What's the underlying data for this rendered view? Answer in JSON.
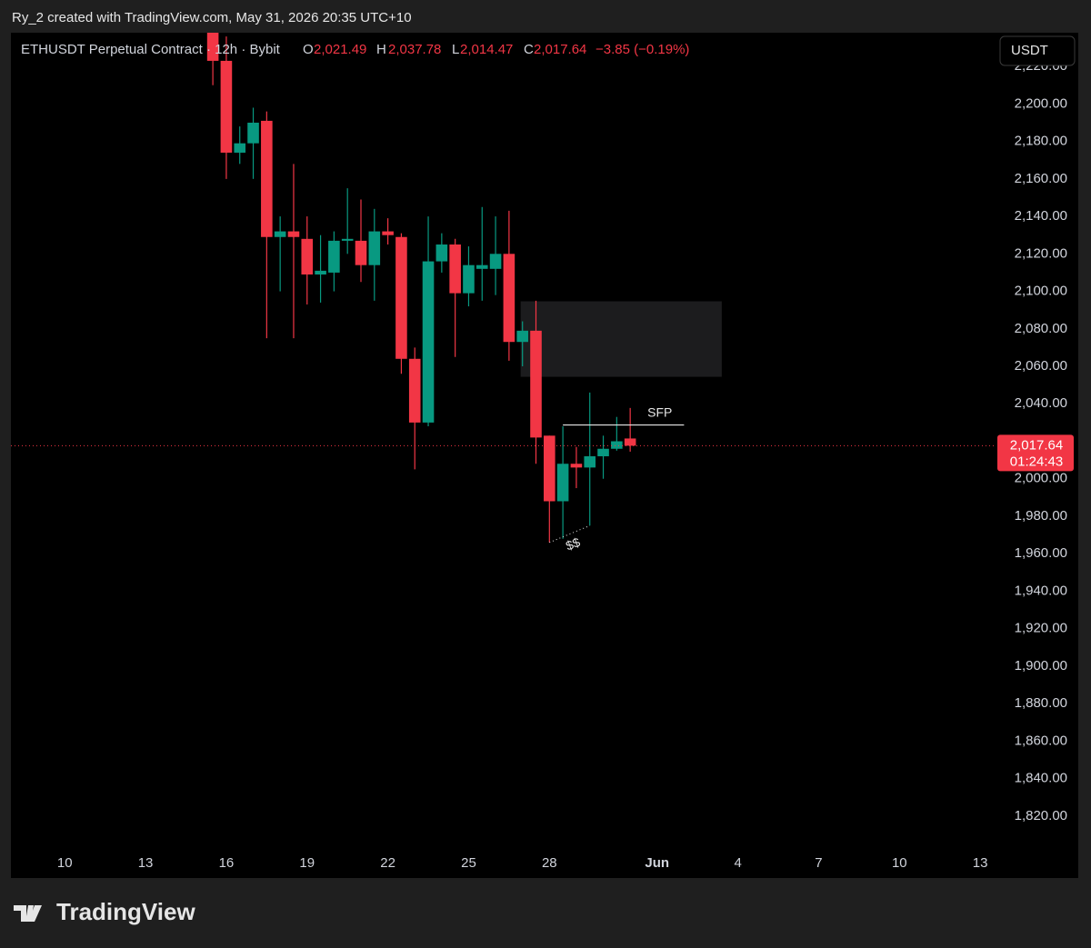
{
  "header": {
    "title": "Ry_2 created with TradingView.com, May 31, 2026 20:35 UTC+10"
  },
  "chart_data": {
    "type": "candlestick",
    "symbol": "ETHUSDT Perpetual Contract · 12h · Bybit",
    "legend": [
      {
        "key": "O",
        "value": "2,021.49"
      },
      {
        "key": "H",
        "value": "2,037.78"
      },
      {
        "key": "L",
        "value": "2,014.47"
      },
      {
        "key": "C",
        "value": "2,017.64"
      }
    ],
    "change": "−3.85 (−0.19%)",
    "currency": "USDT",
    "up_color": "#089981",
    "down_color": "#f23645",
    "x": [
      15.5,
      16,
      16.5,
      17,
      17.5,
      18,
      18.5,
      19,
      19.5,
      20,
      20.5,
      21,
      21.5,
      22,
      22.5,
      23,
      23.5,
      24,
      24.5,
      25,
      25.5,
      26,
      26.5,
      27,
      27.5,
      28,
      28.5,
      29,
      29.5,
      30,
      30.5,
      31
    ],
    "open": [
      2245,
      2223,
      2174,
      2179,
      2191,
      2129,
      2132,
      2128,
      2109,
      2110,
      2127,
      2127,
      2114,
      2132,
      2129,
      2064,
      2030,
      2116,
      2125,
      2099,
      2112,
      2112,
      2120,
      2073,
      2079,
      2023,
      1988,
      2008,
      2006,
      2012,
      2016,
      2021.49
    ],
    "high": [
      2250,
      2236,
      2188,
      2198,
      2196,
      2140,
      2168,
      2140,
      2130,
      2132,
      2155,
      2149,
      2144,
      2139,
      2131,
      2070,
      2140,
      2131,
      2128,
      2124,
      2145,
      2140,
      2143,
      2084,
      2095,
      2023,
      2028,
      2017,
      2046,
      2023,
      2033,
      2037.78
    ],
    "low": [
      2210,
      2160,
      2168,
      2160,
      2075,
      2100,
      2075,
      2093,
      2094,
      2100,
      2120,
      2105,
      2095,
      2125,
      2056,
      2005,
      2028,
      2110,
      2065,
      2092,
      2095,
      2098,
      2063,
      2060,
      2008,
      1966,
      1968,
      1995,
      1975,
      2000,
      2015,
      2014.47
    ],
    "close": [
      2223,
      2174,
      2179,
      2190,
      2129,
      2132,
      2129,
      2109,
      2111,
      2127,
      2128,
      2114,
      2132,
      2130,
      2064,
      2030,
      2116,
      2125,
      2099,
      2114,
      2114,
      2120,
      2073,
      2079,
      2022,
      1988,
      2008,
      2006,
      2012,
      2016,
      2020,
      2017.64
    ],
    "xlim": [
      8,
      44.4
    ],
    "ylim": [
      1802,
      2238
    ],
    "xticks": [
      10,
      13,
      16,
      19,
      22,
      25,
      28,
      {
        "value": 32,
        "label": "Jun"
      },
      {
        "value": 35,
        "label": "4"
      },
      {
        "value": 38,
        "label": "7"
      },
      {
        "value": 41,
        "label": "10"
      },
      {
        "value": 44,
        "label": "13"
      }
    ],
    "yticks": [
      {
        "value": 1820,
        "label": "1,820.00"
      },
      {
        "value": 1840,
        "label": "1,840.00"
      },
      {
        "value": 1860,
        "label": "1,860.00"
      },
      {
        "value": 1880,
        "label": "1,880.00"
      },
      {
        "value": 1900,
        "label": "1,900.00"
      },
      {
        "value": 1920,
        "label": "1,920.00"
      },
      {
        "value": 1940,
        "label": "1,940.00"
      },
      {
        "value": 1960,
        "label": "1,960.00"
      },
      {
        "value": 1980,
        "label": "1,980.00"
      },
      {
        "value": 2000,
        "label": "2,000.00"
      },
      {
        "value": 2020,
        "label": "2,020.00"
      },
      {
        "value": 2040,
        "label": "2,040.00"
      },
      {
        "value": 2060,
        "label": "2,060.00"
      },
      {
        "value": 2080,
        "label": "2,080.00"
      },
      {
        "value": 2100,
        "label": "2,100.00"
      },
      {
        "value": 2120,
        "label": "2,120.00"
      },
      {
        "value": 2140,
        "label": "2,140.00"
      },
      {
        "value": 2160,
        "label": "2,160.00"
      },
      {
        "value": 2180,
        "label": "2,180.00"
      },
      {
        "value": 2200,
        "label": "2,200.00"
      },
      {
        "value": 2220,
        "label": "2,220.00"
      }
    ],
    "price_label": "2,017.64",
    "countdown": "01:24:43",
    "zone": {
      "x": [
        26.93,
        34.4
      ],
      "y": [
        2054.4,
        2094.7
      ]
    },
    "sfp": {
      "label": "SFP",
      "x": [
        28.5,
        33
      ],
      "y": 2028.7
    },
    "liquidity": {
      "label": "$$",
      "x": [
        28.0,
        29.5
      ],
      "y": [
        1966,
        1975
      ]
    }
  },
  "footer": {
    "brand": "TradingView"
  }
}
